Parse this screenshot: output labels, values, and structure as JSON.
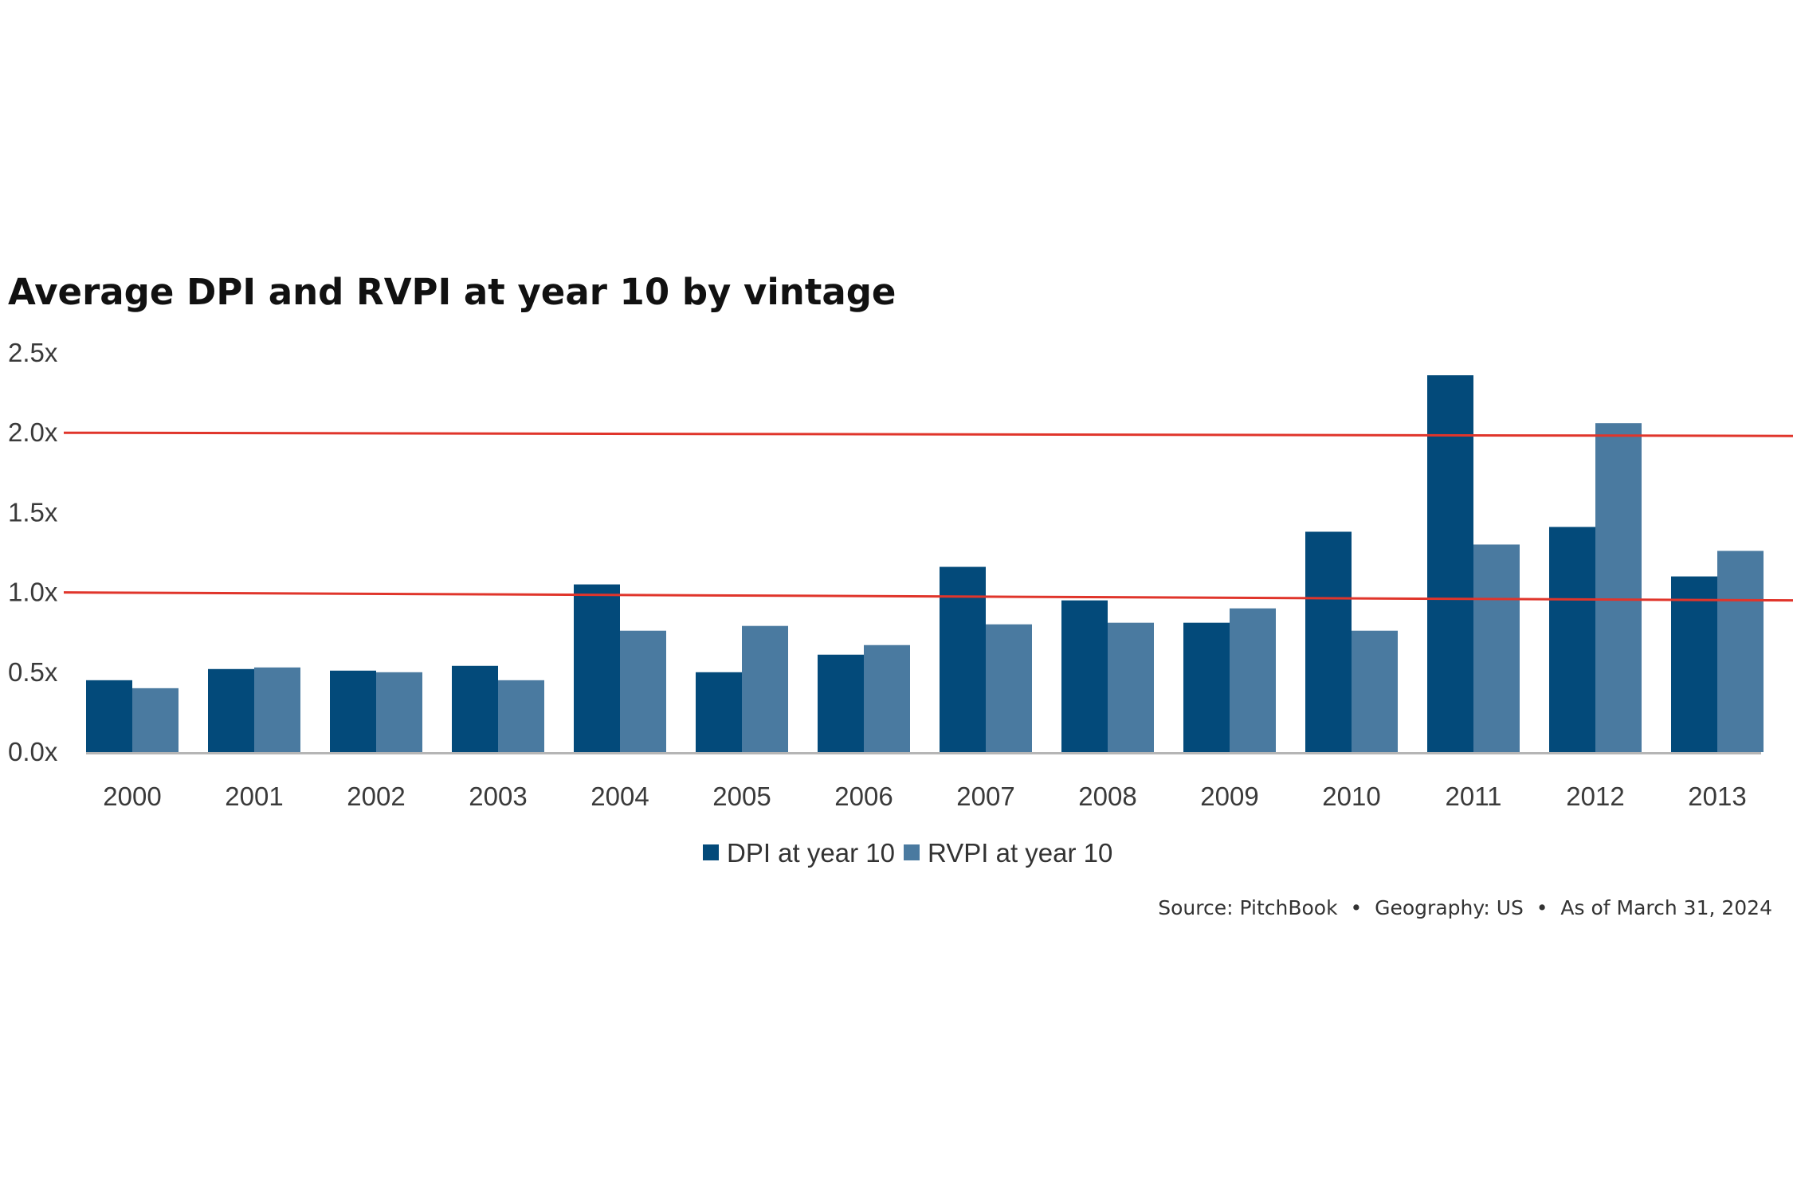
{
  "chart_data": {
    "type": "bar",
    "title": "Average DPI and RVPI at year 10 by vintage",
    "xlabel": "",
    "ylabel": "",
    "categories": [
      "2000",
      "2001",
      "2002",
      "2003",
      "2004",
      "2005",
      "2006",
      "2007",
      "2008",
      "2009",
      "2010",
      "2011",
      "2012",
      "2013"
    ],
    "series": [
      {
        "name": "DPI at year 10",
        "color": "#034a7a",
        "values": [
          0.45,
          0.52,
          0.51,
          0.54,
          1.05,
          0.5,
          0.61,
          1.16,
          0.95,
          0.81,
          1.38,
          2.36,
          1.41,
          1.1
        ]
      },
      {
        "name": "RVPI at year 10",
        "color": "#4a7aa0",
        "values": [
          0.4,
          0.53,
          0.5,
          0.45,
          0.76,
          0.79,
          0.67,
          0.8,
          0.81,
          0.9,
          0.76,
          1.3,
          2.06,
          1.26
        ]
      }
    ],
    "ylim": [
      0,
      2.5
    ],
    "yticks": [
      0,
      0.5,
      1.0,
      1.5,
      2.0,
      2.5
    ],
    "ytick_labels": [
      "0.0x",
      "0.5x",
      "1.0x",
      "1.5x",
      "2.0x",
      "2.5x"
    ],
    "grid": false,
    "legend_position": "bottom-center",
    "annotations": [
      {
        "type": "line",
        "color": "#e0352b",
        "from": {
          "x": "start",
          "y": 2.0
        },
        "to": {
          "x": "end",
          "y": 1.98
        }
      },
      {
        "type": "line",
        "color": "#e0352b",
        "from": {
          "x": "start",
          "y": 1.0
        },
        "to": {
          "x": "end",
          "y": 0.95
        }
      }
    ],
    "source": "Source: PitchBook  •  Geography: US  •  As of March 31, 2024"
  }
}
